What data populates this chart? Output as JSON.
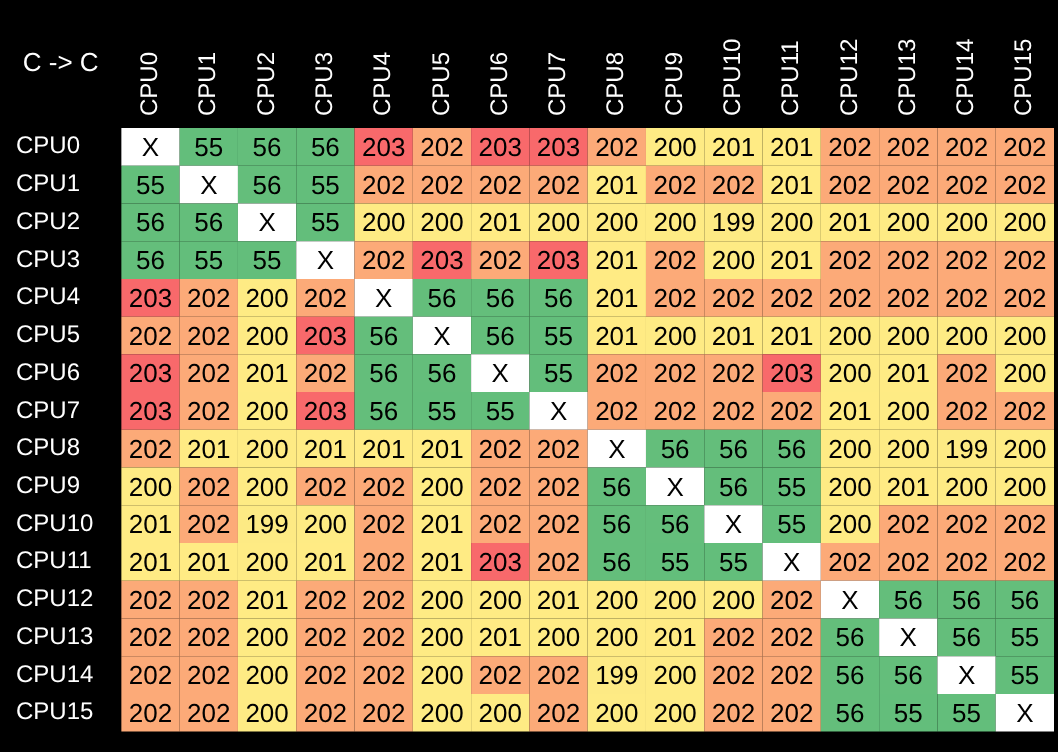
{
  "chart_data": {
    "type": "heatmap",
    "title": "C -> C",
    "categories": [
      "CPU0",
      "CPU1",
      "CPU2",
      "CPU3",
      "CPU4",
      "CPU5",
      "CPU6",
      "CPU7",
      "CPU8",
      "CPU9",
      "CPU10",
      "CPU11",
      "CPU12",
      "CPU13",
      "CPU14",
      "CPU15"
    ],
    "y_categories": [
      "CPU0",
      "CPU1",
      "CPU2",
      "CPU3",
      "CPU4",
      "CPU5",
      "CPU6",
      "CPU7",
      "CPU8",
      "CPU9",
      "CPU10",
      "CPU11",
      "CPU12",
      "CPU13",
      "CPU14",
      "CPU15"
    ],
    "cells": [
      [
        null,
        55,
        56,
        56,
        203,
        202,
        203,
        203,
        202,
        200,
        201,
        201,
        202,
        202,
        202,
        202
      ],
      [
        55,
        null,
        56,
        55,
        202,
        202,
        202,
        202,
        201,
        202,
        202,
        201,
        202,
        202,
        202,
        202
      ],
      [
        56,
        56,
        null,
        55,
        200,
        200,
        201,
        200,
        200,
        200,
        199,
        200,
        201,
        200,
        200,
        200
      ],
      [
        56,
        55,
        55,
        null,
        202,
        203,
        202,
        203,
        201,
        202,
        200,
        201,
        202,
        202,
        202,
        202
      ],
      [
        203,
        202,
        200,
        202,
        null,
        56,
        56,
        56,
        201,
        202,
        202,
        202,
        202,
        202,
        202,
        202
      ],
      [
        202,
        202,
        200,
        203,
        56,
        null,
        56,
        55,
        201,
        200,
        201,
        201,
        200,
        200,
        200,
        200
      ],
      [
        203,
        202,
        201,
        202,
        56,
        56,
        null,
        55,
        202,
        202,
        202,
        203,
        200,
        201,
        202,
        200
      ],
      [
        203,
        202,
        200,
        203,
        56,
        55,
        55,
        null,
        202,
        202,
        202,
        202,
        201,
        200,
        202,
        202
      ],
      [
        202,
        201,
        200,
        201,
        201,
        201,
        202,
        202,
        null,
        56,
        56,
        56,
        200,
        200,
        199,
        200
      ],
      [
        200,
        202,
        200,
        202,
        202,
        200,
        202,
        202,
        56,
        null,
        56,
        55,
        200,
        201,
        200,
        200
      ],
      [
        201,
        202,
        199,
        200,
        202,
        201,
        202,
        202,
        56,
        56,
        null,
        55,
        200,
        202,
        202,
        202
      ],
      [
        201,
        201,
        200,
        201,
        202,
        201,
        203,
        202,
        56,
        55,
        55,
        null,
        202,
        202,
        202,
        202
      ],
      [
        202,
        202,
        201,
        202,
        202,
        200,
        200,
        201,
        200,
        200,
        200,
        202,
        null,
        56,
        56,
        56
      ],
      [
        202,
        202,
        200,
        202,
        202,
        200,
        201,
        200,
        200,
        201,
        202,
        202,
        56,
        null,
        56,
        55
      ],
      [
        202,
        202,
        200,
        202,
        202,
        200,
        202,
        202,
        199,
        200,
        202,
        202,
        56,
        56,
        null,
        55
      ],
      [
        202,
        202,
        200,
        202,
        202,
        200,
        200,
        202,
        200,
        200,
        202,
        202,
        56,
        55,
        55,
        null
      ]
    ],
    "cell_labels": [
      [
        "X",
        "55",
        "56",
        "56",
        "203",
        "202",
        "203",
        "203",
        "202",
        "200",
        "201",
        "201",
        "202",
        "202",
        "202",
        "202"
      ],
      [
        "55",
        "X",
        "56",
        "55",
        "202",
        "202",
        "202",
        "202",
        "201",
        "202",
        "202",
        "201",
        "202",
        "202",
        "202",
        "202"
      ],
      [
        "56",
        "56",
        "X",
        "55",
        "200",
        "200",
        "201",
        "200",
        "200",
        "200",
        "199",
        "200",
        "201",
        "200",
        "200",
        "200"
      ],
      [
        "56",
        "55",
        "55",
        "X",
        "202",
        "203",
        "202",
        "203",
        "201",
        "202",
        "200",
        "201",
        "202",
        "202",
        "202",
        "202"
      ],
      [
        "203",
        "202",
        "200",
        "202",
        "X",
        "56",
        "56",
        "56",
        "201",
        "202",
        "202",
        "202",
        "202",
        "202",
        "202",
        "202"
      ],
      [
        "202",
        "202",
        "200",
        "203",
        "56",
        "X",
        "56",
        "55",
        "201",
        "200",
        "201",
        "201",
        "200",
        "200",
        "200",
        "200"
      ],
      [
        "203",
        "202",
        "201",
        "202",
        "56",
        "56",
        "X",
        "55",
        "202",
        "202",
        "202",
        "203",
        "200",
        "201",
        "202",
        "200"
      ],
      [
        "203",
        "202",
        "200",
        "203",
        "56",
        "55",
        "55",
        "X",
        "202",
        "202",
        "202",
        "202",
        "201",
        "200",
        "202",
        "202"
      ],
      [
        "202",
        "201",
        "200",
        "201",
        "201",
        "201",
        "202",
        "202",
        "X",
        "56",
        "56",
        "56",
        "200",
        "200",
        "199",
        "200"
      ],
      [
        "200",
        "202",
        "200",
        "202",
        "202",
        "200",
        "202",
        "202",
        "56",
        "X",
        "56",
        "55",
        "200",
        "201",
        "200",
        "200"
      ],
      [
        "201",
        "202",
        "199",
        "200",
        "202",
        "201",
        "202",
        "202",
        "56",
        "56",
        "X",
        "55",
        "200",
        "202",
        "202",
        "202"
      ],
      [
        "201",
        "201",
        "200",
        "201",
        "202",
        "201",
        "203",
        "202",
        "56",
        "55",
        "55",
        "X",
        "202",
        "202",
        "202",
        "202"
      ],
      [
        "202",
        "202",
        "201",
        "202",
        "202",
        "200",
        "200",
        "201",
        "200",
        "200",
        "200",
        "202",
        "X",
        "56",
        "56",
        "56"
      ],
      [
        "202",
        "202",
        "200",
        "202",
        "202",
        "200",
        "201",
        "200",
        "200",
        "201",
        "202",
        "202",
        "56",
        "X",
        "56",
        "55"
      ],
      [
        "202",
        "202",
        "200",
        "202",
        "202",
        "200",
        "202",
        "202",
        "199",
        "200",
        "202",
        "202",
        "56",
        "56",
        "X",
        "55"
      ],
      [
        "202",
        "202",
        "200",
        "202",
        "202",
        "200",
        "200",
        "202",
        "200",
        "200",
        "202",
        "202",
        "56",
        "55",
        "55",
        "X"
      ]
    ]
  }
}
